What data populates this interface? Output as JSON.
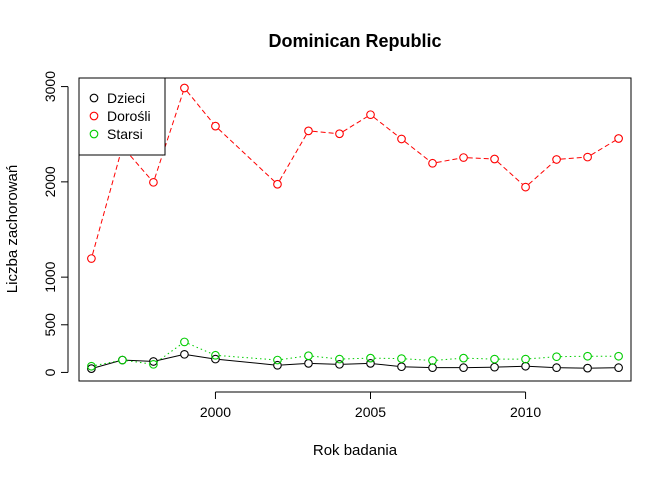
{
  "chart_data": {
    "type": "line",
    "title": "Dominican Republic",
    "xlabel": "Rok badania",
    "ylabel": "Liczba zachorowań",
    "xlim": [
      1995.6,
      2013.4
    ],
    "ylim": [
      -90,
      3090
    ],
    "x_ticks": [
      2000,
      2005,
      2010
    ],
    "y_ticks": [
      0,
      500,
      1000,
      2000,
      3000
    ],
    "x": [
      1996,
      1997,
      1998,
      1999,
      2000,
      2002,
      2003,
      2004,
      2005,
      2006,
      2007,
      2008,
      2009,
      2010,
      2011,
      2012,
      2013
    ],
    "legend_position": "top-left",
    "grid": false,
    "series": [
      {
        "name": "Dzieci",
        "color": "#000000",
        "line_style": "solid",
        "values": [
          40,
          130,
          115,
          190,
          140,
          75,
          95,
          85,
          95,
          60,
          50,
          50,
          55,
          65,
          50,
          45,
          50
        ]
      },
      {
        "name": "Dorośli",
        "color": "#FF0000",
        "line_style": "dashed",
        "values": [
          1195,
          2370,
          1995,
          2985,
          2585,
          1975,
          2535,
          2505,
          2705,
          2450,
          2195,
          2255,
          2240,
          1945,
          2235,
          2260,
          2455
        ]
      },
      {
        "name": "Starsi",
        "color": "#00CD00",
        "line_style": "dotted",
        "values": [
          65,
          130,
          85,
          320,
          180,
          130,
          175,
          140,
          150,
          145,
          125,
          150,
          140,
          140,
          165,
          170,
          170
        ]
      }
    ]
  }
}
